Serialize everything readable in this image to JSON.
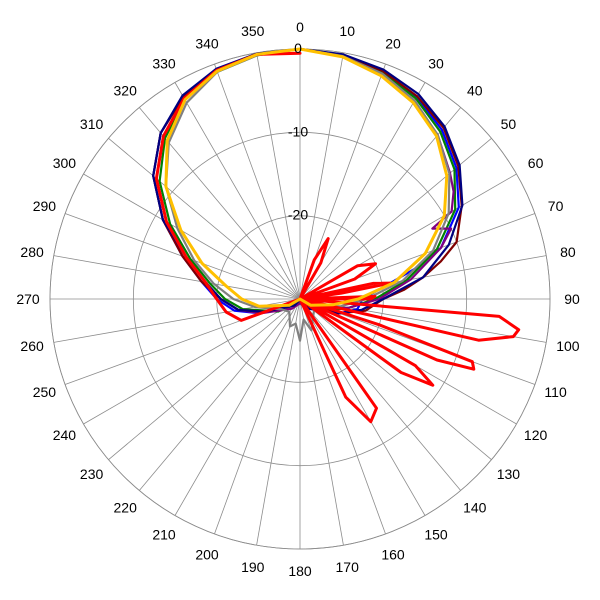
{
  "chart_data": {
    "type": "polar-line",
    "title": "",
    "angle_direction": "clockwise",
    "zero_angle": "top",
    "angle_ticks": [
      0,
      10,
      20,
      30,
      40,
      50,
      60,
      70,
      80,
      90,
      100,
      110,
      120,
      130,
      140,
      150,
      160,
      170,
      180,
      190,
      200,
      210,
      220,
      230,
      240,
      250,
      260,
      270,
      280,
      290,
      300,
      310,
      320,
      330,
      340,
      350
    ],
    "angle_tick_labels": [
      "0",
      "10",
      "20",
      "30",
      "40",
      "50",
      "60",
      "70",
      "80",
      "90",
      "100",
      "110",
      "120",
      "130",
      "140",
      "150",
      "160",
      "170",
      "180",
      "190",
      "200",
      "210",
      "220",
      "230",
      "240",
      "250",
      "260",
      "270",
      "280",
      "290",
      "300",
      "310",
      "320",
      "330",
      "340",
      "350"
    ],
    "radial_range": [
      -30,
      0
    ],
    "radial_ticks": [
      0,
      -10,
      -20
    ],
    "radial_tick_labels": [
      "0",
      "-10",
      "-20"
    ],
    "grid": true,
    "series": [
      {
        "color": "#0000ff",
        "points": [
          [
            0,
            0
          ],
          [
            10,
            -0.3
          ],
          [
            20,
            -1
          ],
          [
            30,
            -2
          ],
          [
            40,
            -3.5
          ],
          [
            50,
            -5.5
          ],
          [
            60,
            -8
          ],
          [
            70,
            -12
          ],
          [
            75,
            -15.5
          ],
          [
            80,
            -19
          ],
          [
            90,
            -22.5
          ],
          [
            100,
            -23
          ],
          [
            110,
            -25
          ],
          [
            140,
            -29
          ],
          [
            180,
            -30
          ],
          [
            220,
            -29
          ],
          [
            250,
            -25
          ],
          [
            260,
            -22
          ],
          [
            270,
            -20
          ],
          [
            280,
            -18
          ],
          [
            290,
            -15
          ],
          [
            300,
            -11
          ],
          [
            310,
            -7
          ],
          [
            320,
            -4
          ],
          [
            330,
            -2
          ],
          [
            340,
            -0.8
          ],
          [
            350,
            -0.2
          ],
          [
            360,
            0
          ]
        ]
      },
      {
        "color": "#008000",
        "points": [
          [
            0,
            0
          ],
          [
            10,
            -0.4
          ],
          [
            20,
            -1.1
          ],
          [
            30,
            -2.2
          ],
          [
            40,
            -3.8
          ],
          [
            50,
            -5.8
          ],
          [
            60,
            -8.5
          ],
          [
            70,
            -12.5
          ],
          [
            80,
            -17
          ],
          [
            90,
            -21
          ],
          [
            100,
            -24
          ],
          [
            120,
            -27
          ],
          [
            160,
            -29.5
          ],
          [
            200,
            -29.5
          ],
          [
            240,
            -27
          ],
          [
            260,
            -23
          ],
          [
            270,
            -21
          ],
          [
            280,
            -19
          ],
          [
            290,
            -16
          ],
          [
            300,
            -12
          ],
          [
            310,
            -8
          ],
          [
            320,
            -4.8
          ],
          [
            330,
            -2.3
          ],
          [
            340,
            -1
          ],
          [
            350,
            -0.3
          ],
          [
            360,
            0
          ]
        ]
      },
      {
        "color": "#800080",
        "points": [
          [
            0,
            0
          ],
          [
            10,
            -0.5
          ],
          [
            20,
            -1.4
          ],
          [
            30,
            -2.6
          ],
          [
            40,
            -4.3
          ],
          [
            50,
            -6.5
          ],
          [
            55,
            -7.5
          ],
          [
            60,
            -9
          ],
          [
            62,
            -12
          ],
          [
            65,
            -10
          ],
          [
            70,
            -12
          ],
          [
            80,
            -16.5
          ],
          [
            90,
            -20.5
          ],
          [
            100,
            -24
          ],
          [
            140,
            -28.5
          ],
          [
            180,
            -29.5
          ],
          [
            220,
            -28.5
          ],
          [
            250,
            -25
          ],
          [
            260,
            -22.5
          ],
          [
            270,
            -20.5
          ],
          [
            280,
            -18.5
          ],
          [
            290,
            -15.5
          ],
          [
            300,
            -11.5
          ],
          [
            310,
            -7.5
          ],
          [
            320,
            -4.5
          ],
          [
            330,
            -2.2
          ],
          [
            340,
            -0.8
          ],
          [
            350,
            -0.2
          ],
          [
            360,
            0
          ]
        ]
      },
      {
        "color": "#800000",
        "points": [
          [
            0,
            0
          ],
          [
            10,
            -0.3
          ],
          [
            20,
            -0.9
          ],
          [
            30,
            -1.9
          ],
          [
            40,
            -3.2
          ],
          [
            50,
            -5.2
          ],
          [
            60,
            -7.6
          ],
          [
            70,
            -10
          ],
          [
            75,
            -12.5
          ],
          [
            80,
            -15
          ],
          [
            85,
            -17.5
          ],
          [
            90,
            -20
          ],
          [
            100,
            -22
          ],
          [
            110,
            -25
          ],
          [
            140,
            -29
          ],
          [
            180,
            -30
          ],
          [
            220,
            -29
          ],
          [
            250,
            -25.5
          ],
          [
            260,
            -22.5
          ],
          [
            270,
            -20.5
          ],
          [
            280,
            -18
          ],
          [
            290,
            -15
          ],
          [
            300,
            -11
          ],
          [
            310,
            -7
          ],
          [
            320,
            -4
          ],
          [
            330,
            -2
          ],
          [
            340,
            -0.7
          ],
          [
            350,
            -0.2
          ],
          [
            360,
            0
          ]
        ]
      },
      {
        "color": "#000080",
        "points": [
          [
            0,
            0
          ],
          [
            10,
            -0.2
          ],
          [
            20,
            -0.7
          ],
          [
            30,
            -1.6
          ],
          [
            40,
            -3
          ],
          [
            50,
            -5
          ],
          [
            60,
            -7.5
          ],
          [
            70,
            -11
          ],
          [
            80,
            -15
          ],
          [
            90,
            -20
          ],
          [
            100,
            -22.5
          ],
          [
            110,
            -25
          ],
          [
            140,
            -28.5
          ],
          [
            180,
            -30
          ],
          [
            220,
            -29
          ],
          [
            250,
            -25.5
          ],
          [
            260,
            -22.5
          ],
          [
            270,
            -20.5
          ],
          [
            280,
            -18.5
          ],
          [
            290,
            -15.5
          ],
          [
            300,
            -11
          ],
          [
            310,
            -7
          ],
          [
            320,
            -4
          ],
          [
            330,
            -1.8
          ],
          [
            340,
            -0.6
          ],
          [
            350,
            -0.1
          ],
          [
            360,
            0
          ]
        ]
      },
      {
        "color": "#808080",
        "points": [
          [
            0,
            0
          ],
          [
            10,
            -0.4
          ],
          [
            20,
            -1.2
          ],
          [
            30,
            -2.5
          ],
          [
            40,
            -4.3
          ],
          [
            50,
            -6.6
          ],
          [
            60,
            -9.4
          ],
          [
            70,
            -13
          ],
          [
            80,
            -17.5
          ],
          [
            90,
            -22
          ],
          [
            100,
            -25
          ],
          [
            120,
            -28
          ],
          [
            160,
            -26
          ],
          [
            170,
            -27.5
          ],
          [
            180,
            -25
          ],
          [
            190,
            -27
          ],
          [
            200,
            -26.5
          ],
          [
            220,
            -28
          ],
          [
            240,
            -27.5
          ],
          [
            260,
            -24.5
          ],
          [
            270,
            -22
          ],
          [
            280,
            -19.5
          ],
          [
            290,
            -16.5
          ],
          [
            300,
            -13
          ],
          [
            310,
            -9
          ],
          [
            320,
            -5.5
          ],
          [
            330,
            -2.8
          ],
          [
            340,
            -1
          ],
          [
            350,
            -0.3
          ],
          [
            360,
            0
          ]
        ]
      },
      {
        "color": "#ff0000",
        "points": [
          [
            0,
            -30
          ],
          [
            20,
            -25
          ],
          [
            25,
            -22
          ],
          [
            30,
            -25
          ],
          [
            40,
            -30
          ],
          [
            60,
            -22
          ],
          [
            65,
            -20
          ],
          [
            70,
            -23
          ],
          [
            75,
            -30
          ],
          [
            78,
            -21
          ],
          [
            80,
            -19
          ],
          [
            82,
            -25
          ],
          [
            85,
            -30
          ],
          [
            88,
            -21
          ],
          [
            90,
            -21.5
          ],
          [
            92,
            -30
          ],
          [
            95,
            -6
          ],
          [
            98,
            -3.5
          ],
          [
            100,
            -4
          ],
          [
            103,
            -8
          ],
          [
            106,
            -30
          ],
          [
            108,
            -20
          ],
          [
            110,
            -8
          ],
          [
            112,
            -7.5
          ],
          [
            114,
            -12
          ],
          [
            118,
            -30
          ],
          [
            120,
            -14
          ],
          [
            123,
            -11
          ],
          [
            126,
            -15
          ],
          [
            130,
            -30
          ],
          [
            145,
            -14
          ],
          [
            150,
            -13
          ],
          [
            155,
            -17
          ],
          [
            160,
            -30
          ],
          [
            200,
            -30
          ],
          [
            250,
            -22.5
          ],
          [
            260,
            -21
          ],
          [
            270,
            -20
          ],
          [
            280,
            -18.5
          ],
          [
            290,
            -15.5
          ],
          [
            300,
            -11.5
          ],
          [
            310,
            -7.5
          ],
          [
            320,
            -4.5
          ],
          [
            330,
            -2.2
          ],
          [
            340,
            -0.8
          ],
          [
            350,
            -0.2
          ],
          [
            360,
            -0.5
          ]
        ]
      },
      {
        "color": "#ffc000",
        "points": [
          [
            0,
            0
          ],
          [
            10,
            -0.5
          ],
          [
            20,
            -1.5
          ],
          [
            30,
            -2.8
          ],
          [
            40,
            -4.5
          ],
          [
            50,
            -7
          ],
          [
            60,
            -10
          ],
          [
            70,
            -14
          ],
          [
            80,
            -18.5
          ],
          [
            90,
            -23
          ],
          [
            100,
            -26
          ],
          [
            120,
            -28.5
          ],
          [
            180,
            -30
          ],
          [
            240,
            -28.5
          ],
          [
            260,
            -25
          ],
          [
            270,
            -23
          ],
          [
            280,
            -21
          ],
          [
            290,
            -17.5
          ],
          [
            300,
            -13.5
          ],
          [
            310,
            -9
          ],
          [
            320,
            -5.2
          ],
          [
            330,
            -2.4
          ],
          [
            340,
            -0.9
          ],
          [
            350,
            -0.2
          ],
          [
            360,
            0
          ]
        ]
      }
    ]
  }
}
